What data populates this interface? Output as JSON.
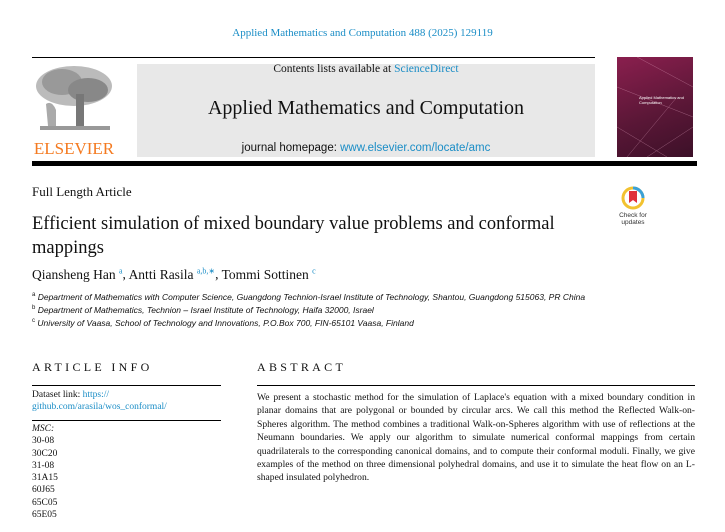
{
  "header": {
    "citation": "Applied Mathematics and Computation 488 (2025) 129119",
    "contents_prefix": "Contents lists available at ",
    "contents_link": "ScienceDirect",
    "journal_title": "Applied Mathematics and Computation",
    "homepage_prefix": "journal homepage: ",
    "homepage_link": "www.elsevier.com/locate/amc",
    "publisher_logo": "ELSEVIER",
    "cover_title": "Applied Mathematics and Computation",
    "crossmark_label": "Check for updates"
  },
  "article": {
    "type": "Full Length Article",
    "title": "Efficient simulation of mixed boundary value problems and conformal mappings",
    "authors": [
      {
        "name": "Qiansheng Han",
        "sup": "a",
        "sep": ", "
      },
      {
        "name": "Antti Rasila",
        "sup": "a,b,∗",
        "sep": ", "
      },
      {
        "name": "Tommi Sottinen",
        "sup": "c",
        "sep": ""
      }
    ],
    "affiliations": [
      {
        "mark": "a",
        "text": "Department of Mathematics with Computer Science, Guangdong Technion-Israel Institute of Technology, Shantou, Guangdong 515063, PR China"
      },
      {
        "mark": "b",
        "text": "Department of Mathematics, Technion – Israel Institute of Technology, Haifa 32000, Israel"
      },
      {
        "mark": "c",
        "text": "University of Vaasa, School of Technology and Innovations, P.O.Box 700, FIN-65101 Vaasa, Finland"
      }
    ]
  },
  "article_info": {
    "heading": "ARTICLE INFO",
    "dataset_label": "Dataset link: ",
    "dataset_link_1": "https://",
    "dataset_link_2": "github.com/arasila/wos_conformal/",
    "msc_label": "MSC:",
    "msc": [
      "30-08",
      "30C20",
      "31-08",
      "31A15",
      "60J65",
      "65C05",
      "65E05"
    ]
  },
  "abstract": {
    "heading": "ABSTRACT",
    "text": "We present a stochastic method for the simulation of Laplace's equation with a mixed boundary condition in planar domains that are polygonal or bounded by circular arcs. We call this method the Reflected Walk-on-Spheres algorithm. The method combines a traditional Walk-on-Spheres algorithm with use of reflections at the Neumann boundaries. We apply our algorithm to simulate numerical conformal mappings from certain quadrilaterals to the corresponding canonical domains, and to compute their conformal moduli. Finally, we give examples of the method on three dimensional polyhedral domains, and use it to simulate the heat flow on an L-shaped insulated polyhedron."
  }
}
